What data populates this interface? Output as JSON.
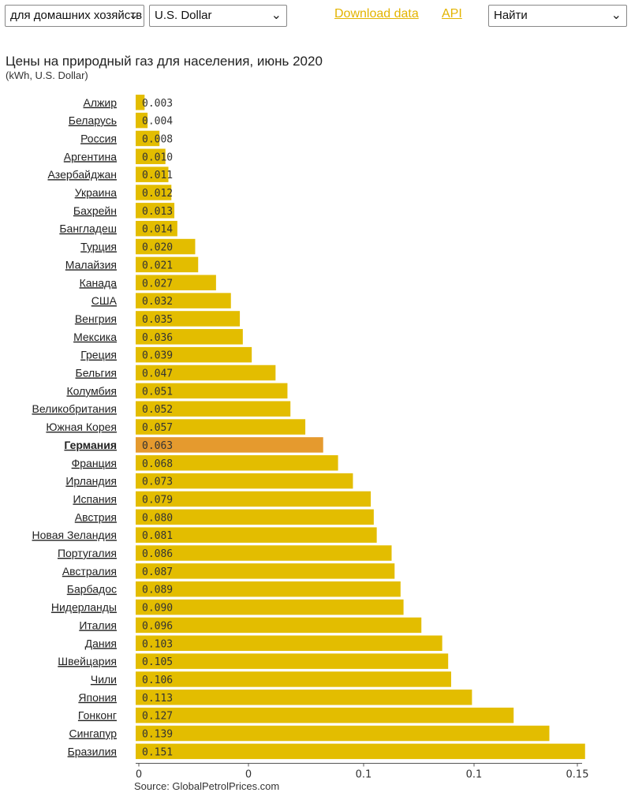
{
  "controls": {
    "type_select": "для домашних хозяйств",
    "currency_select": "U.S. Dollar",
    "download_link": "Download data",
    "api_link": "API",
    "find_select": "Найти"
  },
  "colors": {
    "bar": "#e3bd00",
    "highlight": "#e59a2e",
    "link": "#e3b400"
  },
  "chart_data": {
    "type": "bar",
    "orientation": "horizontal",
    "title": "Цены на природный газ для населения, июнь 2020",
    "subtitle": "(kWh, U.S. Dollar)",
    "source": "Source: GlobalPetrolPrices.com",
    "highlight": "Германия",
    "xlim": [
      0,
      0.15
    ],
    "x_ticks": [
      "0",
      "0",
      "0.1",
      "0.1",
      "0.15"
    ],
    "categories": [
      "Алжир",
      "Беларусь",
      "Россия",
      "Аргентина",
      "Азербайджан",
      "Украина",
      "Бахрейн",
      "Бангладеш",
      "Турция",
      "Малайзия",
      "Канада",
      "США",
      "Венгрия",
      "Мексика",
      "Греция",
      "Бельгия",
      "Колумбия",
      "Великобритания",
      "Южная Корея",
      "Германия",
      "Франция",
      "Ирландия",
      "Испания",
      "Австрия",
      "Новая Зеландия",
      "Португалия",
      "Австралия",
      "Барбадос",
      "Нидерланды",
      "Италия",
      "Дания",
      "Швейцария",
      "Чили",
      "Япония",
      "Гонконг",
      "Сингапур",
      "Бразилия"
    ],
    "values": [
      0.003,
      0.004,
      0.008,
      0.01,
      0.011,
      0.012,
      0.013,
      0.014,
      0.02,
      0.021,
      0.027,
      0.032,
      0.035,
      0.036,
      0.039,
      0.047,
      0.051,
      0.052,
      0.057,
      0.063,
      0.068,
      0.073,
      0.079,
      0.08,
      0.081,
      0.086,
      0.087,
      0.089,
      0.09,
      0.096,
      0.103,
      0.105,
      0.106,
      0.113,
      0.127,
      0.139,
      0.151
    ],
    "value_labels": [
      "0.003",
      "0.004",
      "0.008",
      "0.010",
      "0.011",
      "0.012",
      "0.013",
      "0.014",
      "0.020",
      "0.021",
      "0.027",
      "0.032",
      "0.035",
      "0.036",
      "0.039",
      "0.047",
      "0.051",
      "0.052",
      "0.057",
      "0.063",
      "0.068",
      "0.073",
      "0.079",
      "0.080",
      "0.081",
      "0.086",
      "0.087",
      "0.089",
      "0.090",
      "0.096",
      "0.103",
      "0.105",
      "0.106",
      "0.113",
      "0.127",
      "0.139",
      "0.151"
    ]
  }
}
